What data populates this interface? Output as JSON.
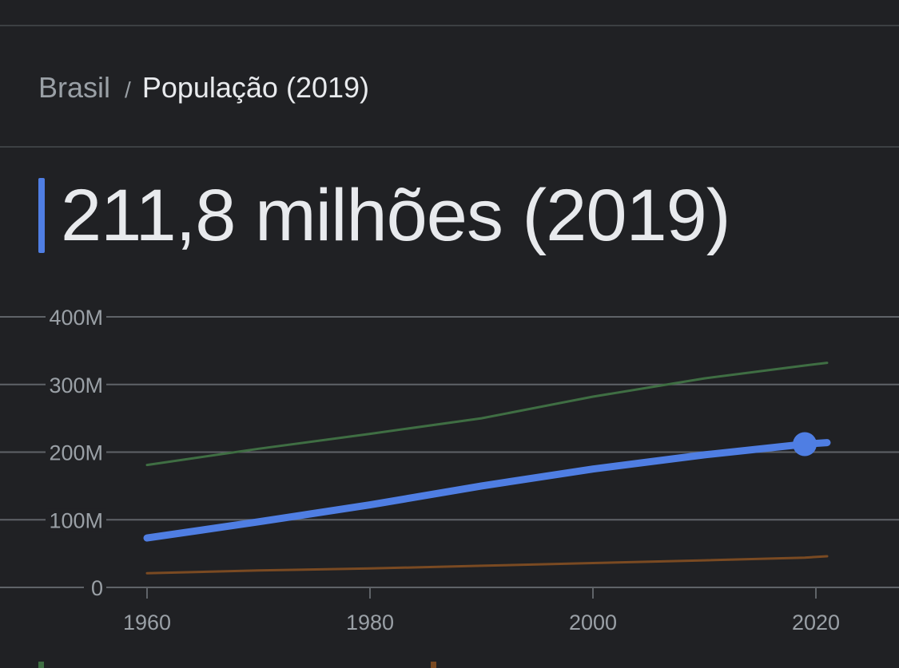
{
  "breadcrumb": {
    "parent": "Brasil",
    "separator": "/",
    "current": "População (2019)"
  },
  "headline": {
    "value": "211,8 milhões (2019)",
    "accent_color": "#4f7ee3"
  },
  "colors": {
    "grid": "#5f6368",
    "tick_label": "#9aa0a6",
    "brazil": "#4f7ee3",
    "comparison_green": "#3f6e43",
    "comparison_orange": "#7a4a22"
  },
  "chart_data": {
    "type": "line",
    "ylim": [
      0,
      400
    ],
    "xlim": [
      1950,
      2025
    ],
    "y_ticks": [
      {
        "value": 0,
        "label": "0"
      },
      {
        "value": 100,
        "label": "100M"
      },
      {
        "value": 200,
        "label": "200M"
      },
      {
        "value": 300,
        "label": "300M"
      },
      {
        "value": 400,
        "label": "400M"
      }
    ],
    "x_ticks": [
      {
        "value": 1960,
        "label": "1960"
      },
      {
        "value": 1980,
        "label": "1980"
      },
      {
        "value": 2000,
        "label": "2000"
      },
      {
        "value": 2020,
        "label": "2020"
      }
    ],
    "grid": true,
    "series": [
      {
        "color": "#3f6e43",
        "points": [
          [
            1960,
            181
          ],
          [
            1970,
            205
          ],
          [
            1980,
            227
          ],
          [
            1990,
            250
          ],
          [
            2000,
            282
          ],
          [
            2010,
            309
          ],
          [
            2019,
            328
          ],
          [
            2021,
            332
          ]
        ]
      },
      {
        "color": "#4f7ee3",
        "highlight": {
          "x": 2019,
          "y": 211.8
        },
        "points": [
          [
            1960,
            73
          ],
          [
            1970,
            97
          ],
          [
            1980,
            122
          ],
          [
            1990,
            150
          ],
          [
            2000,
            175
          ],
          [
            2010,
            196
          ],
          [
            2019,
            211.8
          ],
          [
            2021,
            214
          ]
        ]
      },
      {
        "color": "#7a4a22",
        "points": [
          [
            1960,
            21
          ],
          [
            1970,
            25
          ],
          [
            1980,
            28
          ],
          [
            1990,
            32
          ],
          [
            2000,
            36
          ],
          [
            2010,
            40
          ],
          [
            2019,
            44
          ],
          [
            2021,
            46
          ]
        ]
      }
    ]
  }
}
